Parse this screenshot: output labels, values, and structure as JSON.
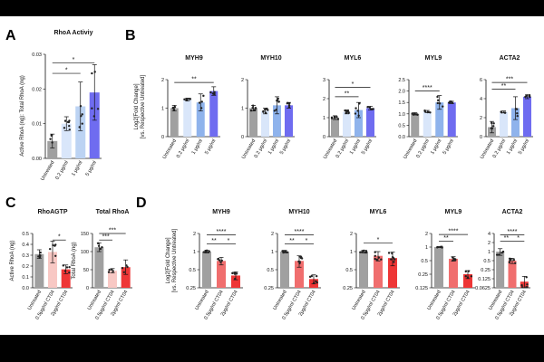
{
  "colors": {
    "untreated": "#a0a0a0",
    "blue1": "#d9e6fa",
    "blue2": "#bcd3f3",
    "blue3": "#8fb3ec",
    "blue4": "#6f6cf0",
    "pink1": "#f8c8c4",
    "red1": "#f06e6e",
    "red2": "#ee3636"
  },
  "panel_labels": {
    "A": "A",
    "B": "B",
    "C": "C",
    "D": "D"
  },
  "shared": {
    "ylabel_B_line1": "Log2[Fold Change]",
    "ylabel_B_line2": "[vs. Respective Untreated]",
    "ylabel_D_line1": "Log2[Fold Change]",
    "ylabel_D_line2": "[vs. Respective Untreated]",
    "a_ylabel": "Active RhoA (ng): Total RhoA (ng)",
    "c1_ylabel": "Active RhoA (ng)",
    "c2_ylabel": "Total RhoA (ng)"
  },
  "chart_data": [
    {
      "id": "A",
      "type": "bar",
      "title": "RhoA Activiy",
      "categories": [
        "Untreated",
        "0.2 μg/ml",
        "1 μg/ml",
        "5 μg/ml"
      ],
      "values": [
        0.005,
        0.01,
        0.015,
        0.019
      ],
      "errors": [
        0.002,
        0.002,
        0.007,
        0.008
      ],
      "ylim": [
        0,
        0.03
      ],
      "yticks": [
        "0.00",
        "0.01",
        "0.02",
        "0.03"
      ],
      "ytick_values": [
        0,
        0.01,
        0.02,
        0.03
      ],
      "colorkeys": [
        "untreated",
        "blue1",
        "blue2",
        "blue4"
      ],
      "sig": [
        {
          "a": 0,
          "b": 3,
          "label": "*",
          "y": 0.0275
        },
        {
          "a": 0,
          "b": 2,
          "label": "*",
          "y": 0.0245
        }
      ]
    },
    {
      "id": "B1",
      "type": "bar",
      "title": "MYH9",
      "categories": [
        "Untreated",
        "0.2 μg/ml",
        "1 μg/ml",
        "5 μg/ml"
      ],
      "values": [
        1.0,
        1.3,
        1.2,
        1.6
      ],
      "errors": [
        0.1,
        0.05,
        0.3,
        0.15
      ],
      "ylim": [
        0,
        2
      ],
      "yticks": [
        "0",
        "1",
        "2"
      ],
      "ytick_values": [
        0,
        1,
        2
      ],
      "colorkeys": [
        "untreated",
        "blue1",
        "blue3",
        "blue4"
      ],
      "sig": [
        {
          "a": 0,
          "b": 3,
          "label": "**",
          "y": 1.9
        }
      ]
    },
    {
      "id": "B2",
      "type": "bar",
      "title": "MYH10",
      "categories": [
        "Untreated",
        "0.2 μg/ml",
        "1 μg/ml",
        "5 μg/ml"
      ],
      "values": [
        1.0,
        0.9,
        1.1,
        1.1
      ],
      "errors": [
        0.1,
        0.1,
        0.3,
        0.1
      ],
      "ylim": [
        0,
        2
      ],
      "yticks": [
        "0",
        "1",
        "2"
      ],
      "ytick_values": [
        0,
        1,
        2
      ],
      "colorkeys": [
        "untreated",
        "blue1",
        "blue3",
        "blue4"
      ],
      "sig": []
    },
    {
      "id": "B3",
      "type": "bar",
      "title": "MYL6",
      "categories": [
        "Untreated",
        "0.2 μg/ml",
        "1 μg/ml",
        "5 μg/ml"
      ],
      "values": [
        1.0,
        1.3,
        1.4,
        1.5
      ],
      "errors": [
        0.1,
        0.1,
        0.4,
        0.1
      ],
      "ylim": [
        0,
        3
      ],
      "yticks": [
        "0",
        "1",
        "2",
        "3"
      ],
      "ytick_values": [
        0,
        1,
        2,
        3
      ],
      "colorkeys": [
        "untreated",
        "blue1",
        "blue3",
        "blue4"
      ],
      "sig": [
        {
          "a": 0,
          "b": 3,
          "label": "*",
          "y": 2.6
        },
        {
          "a": 0,
          "b": 2,
          "label": "**",
          "y": 2.1
        }
      ]
    },
    {
      "id": "B4",
      "type": "bar",
      "title": "MYL9",
      "categories": [
        "Untreated",
        "0.2 μg/ml",
        "1 μg/ml",
        "5 μg/ml"
      ],
      "values": [
        1.0,
        1.1,
        1.5,
        1.5
      ],
      "errors": [
        0.05,
        0.05,
        0.3,
        0.05
      ],
      "ylim": [
        0,
        2.5
      ],
      "yticks": [
        "0.0",
        "0.5",
        "1.0",
        "1.5",
        "2.0",
        "2.5"
      ],
      "ytick_values": [
        0,
        0.5,
        1,
        1.5,
        2,
        2.5
      ],
      "colorkeys": [
        "untreated",
        "blue1",
        "blue3",
        "blue4"
      ],
      "sig": [
        {
          "a": 0,
          "b": 2,
          "label": "****",
          "y": 2.0
        }
      ]
    },
    {
      "id": "B5",
      "type": "bar",
      "title": "ACTA2",
      "categories": [
        "Untreated",
        "0.2 μg/ml",
        "1 μg/ml",
        "5 μg/ml"
      ],
      "values": [
        1.0,
        2.6,
        3.0,
        4.2
      ],
      "errors": [
        0.6,
        0.1,
        1.2,
        0.2
      ],
      "ylim": [
        0,
        6
      ],
      "yticks": [
        "0",
        "2",
        "4",
        "6"
      ],
      "ytick_values": [
        0,
        2,
        4,
        6
      ],
      "colorkeys": [
        "untreated",
        "blue1",
        "blue3",
        "blue4"
      ],
      "sig": [
        {
          "a": 0,
          "b": 3,
          "label": "***",
          "y": 5.7
        },
        {
          "a": 0,
          "b": 2,
          "label": "**",
          "y": 5.0
        }
      ]
    },
    {
      "id": "C1",
      "type": "bar",
      "title": "RhoAGTP",
      "categories": [
        "Untreated",
        "0.5μg/ml CT04",
        "2μg/ml CT04"
      ],
      "values": [
        0.31,
        0.33,
        0.17
      ],
      "errors": [
        0.04,
        0.1,
        0.04
      ],
      "ylim": [
        0,
        0.5
      ],
      "yticks": [
        "0.0",
        "0.1",
        "0.2",
        "0.3",
        "0.4",
        "0.5"
      ],
      "ytick_values": [
        0,
        0.1,
        0.2,
        0.3,
        0.4,
        0.5
      ],
      "colorkeys": [
        "untreated",
        "pink1",
        "red2"
      ],
      "sig": [
        {
          "a": 1,
          "b": 2,
          "label": "*",
          "y": 0.44
        }
      ]
    },
    {
      "id": "C2",
      "type": "bar",
      "title": "Total RhoA",
      "categories": [
        "Untreated",
        "0.5μg/ml CT04",
        "2μg/ml CT04"
      ],
      "values": [
        112,
        47,
        57
      ],
      "errors": [
        12,
        6,
        20
      ],
      "ylim": [
        0,
        150
      ],
      "yticks": [
        "0",
        "50",
        "100",
        "150"
      ],
      "ytick_values": [
        0,
        50,
        100,
        150
      ],
      "colorkeys": [
        "untreated",
        "pink1",
        "red2"
      ],
      "sig": [
        {
          "a": 0,
          "b": 2,
          "label": "***",
          "y": 150
        },
        {
          "a": 0,
          "b": 1,
          "label": "***",
          "y": 132
        }
      ]
    },
    {
      "id": "D1",
      "type": "bar",
      "title": "MYH9",
      "yscale": "log2",
      "categories": [
        "Untreated",
        "0.5μg/ml CT04",
        "2μg/ml CT04"
      ],
      "values": [
        1.0,
        0.7,
        0.4
      ],
      "errors": [
        0.05,
        0.1,
        0.06
      ],
      "ylim": [
        0.25,
        2
      ],
      "yticks": [
        "0.25",
        "0.5",
        "1",
        "2"
      ],
      "ytick_values": [
        0.25,
        0.5,
        1,
        2
      ],
      "colorkeys": [
        "untreated",
        "red1",
        "red2"
      ],
      "sig": [
        {
          "a": 0,
          "b": 2,
          "label": "****",
          "y": 1.9
        },
        {
          "a": 0,
          "b": 1,
          "label": "**",
          "y": 1.35
        },
        {
          "a": 1,
          "b": 2,
          "label": "*",
          "y": 1.35
        }
      ]
    },
    {
      "id": "D2",
      "type": "bar",
      "title": "MYH10",
      "yscale": "log2",
      "categories": [
        "Untreated",
        "0.5μg/ml CT04",
        "2μg/ml CT04"
      ],
      "values": [
        1.0,
        0.7,
        0.35
      ],
      "errors": [
        0.05,
        0.15,
        0.06
      ],
      "ylim": [
        0.25,
        2
      ],
      "yticks": [
        "0.25",
        "0.5",
        "1",
        "2"
      ],
      "ytick_values": [
        0.25,
        0.5,
        1,
        2
      ],
      "colorkeys": [
        "untreated",
        "red1",
        "red2"
      ],
      "sig": [
        {
          "a": 0,
          "b": 2,
          "label": "****",
          "y": 1.9
        },
        {
          "a": 0,
          "b": 1,
          "label": "**",
          "y": 1.35
        },
        {
          "a": 1,
          "b": 2,
          "label": "*",
          "y": 1.35
        }
      ]
    },
    {
      "id": "D3",
      "type": "bar",
      "title": "MYL6",
      "yscale": "log2",
      "categories": [
        "Untreated",
        "0.5μg/ml CT04",
        "2μg/ml CT04"
      ],
      "values": [
        1.0,
        0.85,
        0.78
      ],
      "errors": [
        0.05,
        0.15,
        0.2
      ],
      "ylim": [
        0.25,
        2
      ],
      "yticks": [
        "0.25",
        "0.5",
        "1",
        "2"
      ],
      "ytick_values": [
        0.25,
        0.5,
        1,
        2
      ],
      "colorkeys": [
        "untreated",
        "red1",
        "red2"
      ],
      "sig": [
        {
          "a": 0,
          "b": 2,
          "label": "*",
          "y": 1.4
        }
      ]
    },
    {
      "id": "D4",
      "type": "bar",
      "title": "MYL9",
      "yscale": "log2",
      "categories": [
        "Untreated",
        "0.5μg/ml CT04",
        "2μg/ml CT04"
      ],
      "values": [
        1.0,
        0.55,
        0.25
      ],
      "errors": [
        0.03,
        0.06,
        0.05
      ],
      "ylim": [
        0.125,
        2
      ],
      "yticks": [
        "0.125",
        "0.25",
        "0.5",
        "1",
        "2"
      ],
      "ytick_values": [
        0.125,
        0.25,
        0.5,
        1,
        2
      ],
      "colorkeys": [
        "untreated",
        "red1",
        "red2"
      ],
      "sig": [
        {
          "a": 0,
          "b": 2,
          "label": "****",
          "y": 1.9
        },
        {
          "a": 0,
          "b": 1,
          "label": "**",
          "y": 1.35
        }
      ]
    },
    {
      "id": "D5",
      "type": "bar",
      "title": "ACTA2",
      "yscale": "log2",
      "categories": [
        "Untreated",
        "0.5μg/ml CT04",
        "2μg/ml CT04"
      ],
      "values": [
        1.0,
        0.5,
        0.1
      ],
      "errors": [
        0.25,
        0.1,
        0.05
      ],
      "ylim": [
        0.0625,
        4
      ],
      "yticks": [
        "0.0625",
        "0.125",
        "0.25",
        "0.5",
        "1",
        "2",
        "4"
      ],
      "ytick_values": [
        0.0625,
        0.125,
        0.25,
        0.5,
        1,
        2,
        4
      ],
      "colorkeys": [
        "untreated",
        "red1",
        "red2"
      ],
      "sig": [
        {
          "a": 0,
          "b": 2,
          "label": "****",
          "y": 3.6
        },
        {
          "a": 0,
          "b": 1,
          "label": "**",
          "y": 2.2
        },
        {
          "a": 1,
          "b": 2,
          "label": "*",
          "y": 2.2
        }
      ]
    }
  ]
}
